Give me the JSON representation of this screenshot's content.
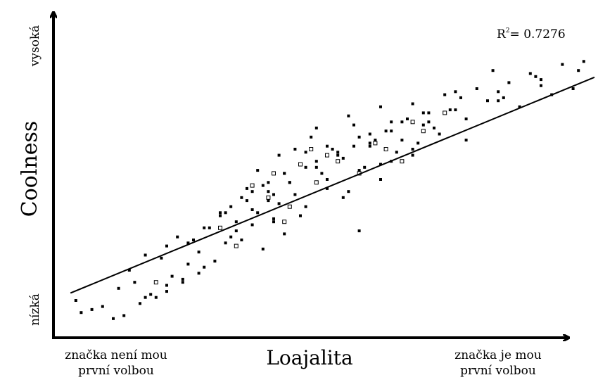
{
  "chart_data": {
    "type": "scatter",
    "title": "",
    "xlabel": "Loajalita",
    "ylabel": "Coolness",
    "x_tick_low": [
      "značka není mou",
      "první volbou"
    ],
    "x_tick_high": [
      "značka je mou",
      "první volbou"
    ],
    "y_tick_low": "nízká",
    "y_tick_high": "vysoká",
    "xlim": [
      0,
      10
    ],
    "ylim": [
      0,
      10
    ],
    "grid": false,
    "legend": "none",
    "annotation": {
      "label": "R",
      "sup": "2",
      "value": "= 0.7276"
    },
    "trendline": {
      "slope": 0.7276,
      "intercept": 1.1
    },
    "series": [
      {
        "marker": "filled-square",
        "color": "#000000",
        "x": [
          0.3,
          0.4,
          0.6,
          0.8,
          1.0,
          1.1,
          1.2,
          1.4,
          1.5,
          1.6,
          1.8,
          1.9,
          2.0,
          2.1,
          2.2,
          2.3,
          2.4,
          2.5,
          2.6,
          2.7,
          1.3,
          1.7,
          2.0,
          2.3,
          2.6,
          2.9,
          3.0,
          3.1,
          3.2,
          3.3,
          3.4,
          3.5,
          3.6,
          3.7,
          3.8,
          3.9,
          4.0,
          4.1,
          4.2,
          4.3,
          2.8,
          3.0,
          3.2,
          3.4,
          3.6,
          3.8,
          4.0,
          4.2,
          4.4,
          4.6,
          4.8,
          5.0,
          5.2,
          5.4,
          5.6,
          5.8,
          6.0,
          6.2,
          6.4,
          6.6,
          3.5,
          3.7,
          3.9,
          4.1,
          4.3,
          4.5,
          4.7,
          4.9,
          5.1,
          5.3,
          5.5,
          5.7,
          5.9,
          6.1,
          6.3,
          6.5,
          6.7,
          6.9,
          7.1,
          7.3,
          4.4,
          4.6,
          4.8,
          5.0,
          5.2,
          5.4,
          5.6,
          5.8,
          6.0,
          6.2,
          6.4,
          6.6,
          6.8,
          7.0,
          7.2,
          7.4,
          7.6,
          7.8,
          8.0,
          8.2,
          8.4,
          8.6,
          8.8,
          9.0,
          9.2,
          9.4,
          9.6,
          9.8,
          2.4,
          3.1,
          4.0,
          4.8,
          5.5,
          6.2,
          6.9,
          7.6,
          8.3,
          9.0,
          2.0,
          3.6,
          4.2,
          5.0,
          5.8,
          6.6,
          7.4,
          8.1,
          8.9,
          9.7,
          1.6,
          2.7,
          3.3,
          4.5,
          5.3,
          6.0,
          6.8,
          7.5,
          8.2,
          3.9,
          4.6,
          5.6
        ],
        "y": [
          1.0,
          0.6,
          0.7,
          0.8,
          0.4,
          1.4,
          0.5,
          1.6,
          0.9,
          2.5,
          1.1,
          2.4,
          1.3,
          1.8,
          3.1,
          1.6,
          2.2,
          3.0,
          1.9,
          3.4,
          2.0,
          1.2,
          2.8,
          1.7,
          2.6,
          2.3,
          3.8,
          2.9,
          4.1,
          3.3,
          3.0,
          4.3,
          3.5,
          3.9,
          2.7,
          4.6,
          3.6,
          4.2,
          3.2,
          4.9,
          3.4,
          3.9,
          3.1,
          4.4,
          4.0,
          4.8,
          3.7,
          5.2,
          4.5,
          4.1,
          5.4,
          4.7,
          5.9,
          4.6,
          5.3,
          6.1,
          5.0,
          5.6,
          6.3,
          5.8,
          4.7,
          5.3,
          4.3,
          5.8,
          4.9,
          5.5,
          6.4,
          5.2,
          6.0,
          5.7,
          6.8,
          5.4,
          6.3,
          6.6,
          5.9,
          7.0,
          6.2,
          6.9,
          6.5,
          7.3,
          6.0,
          5.4,
          6.7,
          6.1,
          5.8,
          7.1,
          6.4,
          6.2,
          7.4,
          6.6,
          6.9,
          7.5,
          7.2,
          6.7,
          7.8,
          7.3,
          7.0,
          8.0,
          7.6,
          7.9,
          8.2,
          7.4,
          8.5,
          8.3,
          7.8,
          8.8,
          8.0,
          8.9,
          2.9,
          3.9,
          4.5,
          5.6,
          6.1,
          6.9,
          7.2,
          6.3,
          7.7,
          8.1,
          1.5,
          4.6,
          5.2,
          5.0,
          6.5,
          6.0,
          7.9,
          8.6,
          8.4,
          8.6,
          1.1,
          2.1,
          3.6,
          3.8,
          4.4,
          5.5,
          6.8,
          7.7,
          7.6,
          4.9,
          5.9,
          3.3
        ]
      },
      {
        "marker": "open-square",
        "color": "#000000",
        "x": [
          1.8,
          3.0,
          3.6,
          4.3,
          4.5,
          4.8,
          5.2,
          5.6,
          6.1,
          6.4,
          6.8,
          7.2,
          3.3,
          3.9,
          4.2,
          5.0,
          5.9,
          6.6,
          4.0,
          4.7
        ],
        "y": [
          1.6,
          3.4,
          4.8,
          4.1,
          5.5,
          4.9,
          5.6,
          5.2,
          6.0,
          5.6,
          6.6,
          7.2,
          2.8,
          4.4,
          3.6,
          5.8,
          6.2,
          6.9,
          5.2,
          6.0
        ]
      }
    ]
  }
}
